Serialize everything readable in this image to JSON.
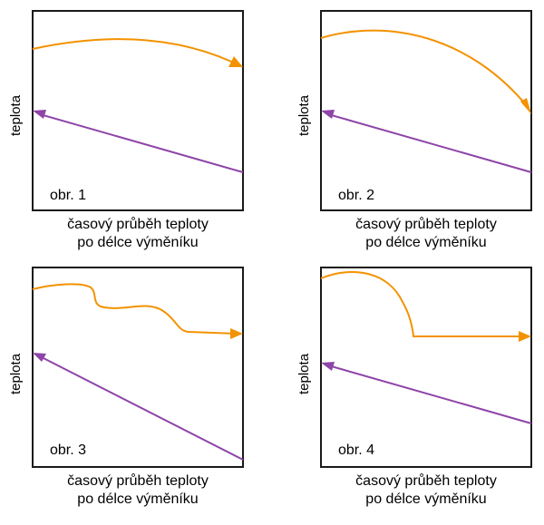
{
  "colors": {
    "hot": "#f39200",
    "cold": "#8e44a8",
    "frame": "#1a1a1a"
  },
  "panels": [
    {
      "label": "obr. 1",
      "ylabel": "teplota",
      "caption_line1": "časový průběh teploty",
      "caption_line2": "po délce výměníku"
    },
    {
      "label": "obr. 2",
      "ylabel": "teplota",
      "caption_line1": "časový průběh teploty",
      "caption_line2": "po délce výměníku"
    },
    {
      "label": "obr. 3",
      "ylabel": "teplota",
      "caption_line1": "časový průběh teploty",
      "caption_line2": "po délce výměníku"
    },
    {
      "label": "obr. 4",
      "ylabel": "teplota",
      "caption_line1": "časový průběh teploty",
      "caption_line2": "po délce výměníku"
    }
  ]
}
